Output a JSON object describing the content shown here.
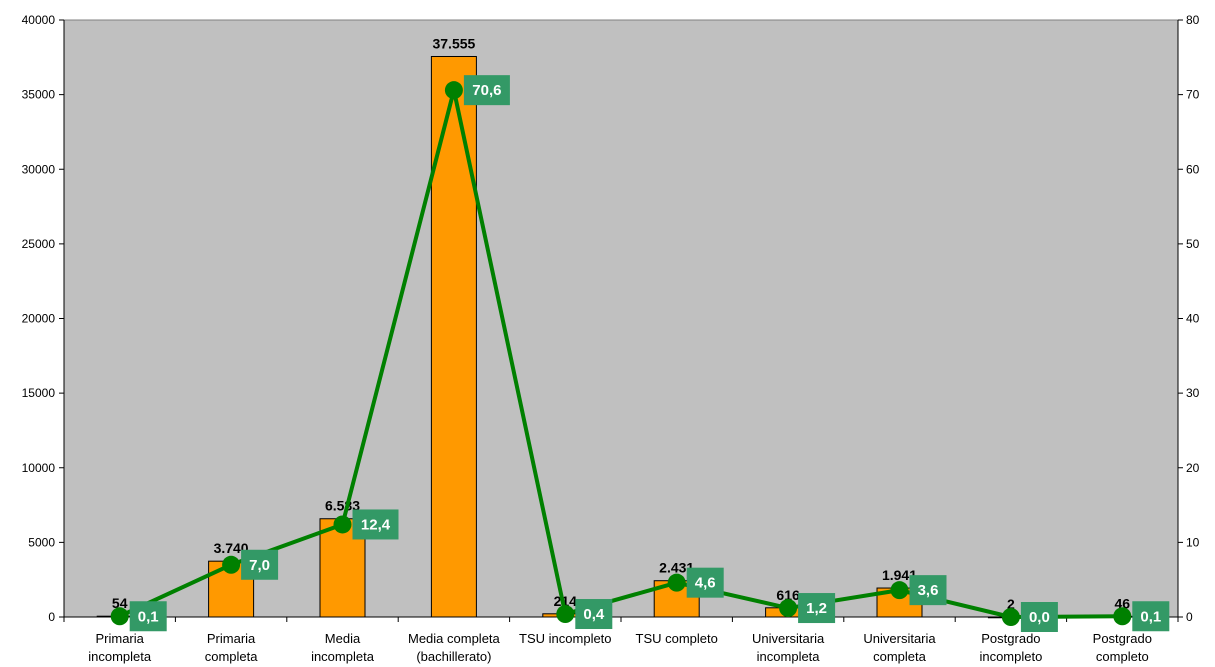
{
  "chart_data": {
    "type": "bar",
    "categories": [
      [
        "Primaria",
        "incompleta"
      ],
      [
        "Primaria",
        "completa"
      ],
      [
        "Media",
        "incompleta"
      ],
      [
        "Media completa",
        "(bachillerato)"
      ],
      [
        "TSU incompleto"
      ],
      [
        "TSU completo"
      ],
      [
        "Universitaria",
        "incompleta"
      ],
      [
        "Universitaria",
        "completa"
      ],
      [
        "Postgrado",
        "incompleto"
      ],
      [
        "Postgrado",
        "completo"
      ]
    ],
    "series": [
      {
        "type": "bar",
        "axis": "left",
        "values": [
          54,
          3740,
          6583,
          37555,
          214,
          2431,
          616,
          1941,
          2,
          46
        ],
        "labels": [
          "54",
          "3.740",
          "6.583",
          "37.555",
          "214",
          "2.431",
          "616",
          "1.941",
          "2",
          "46"
        ],
        "color": "#ff9900"
      },
      {
        "type": "line",
        "axis": "right",
        "values": [
          0.1,
          7.0,
          12.4,
          70.6,
          0.4,
          4.6,
          1.2,
          3.6,
          0.0,
          0.1
        ],
        "labels": [
          "0,1",
          "7,0",
          "12,4",
          "70,6",
          "0,4",
          "4,6",
          "1,2",
          "3,6",
          "0,0",
          "0,1"
        ],
        "color": "#008000",
        "label_bg": "#339966"
      }
    ],
    "y_left": {
      "range": [
        0,
        40000
      ],
      "ticks": [
        "0",
        "5000",
        "10000",
        "15000",
        "20000",
        "25000",
        "30000",
        "35000",
        "40000"
      ]
    },
    "y_right": {
      "range": [
        0,
        80
      ],
      "ticks": [
        "0",
        "10",
        "20",
        "30",
        "40",
        "50",
        "60",
        "70",
        "80"
      ]
    },
    "plot_background": "#c0c0c0",
    "grid": false,
    "legend": "none"
  }
}
